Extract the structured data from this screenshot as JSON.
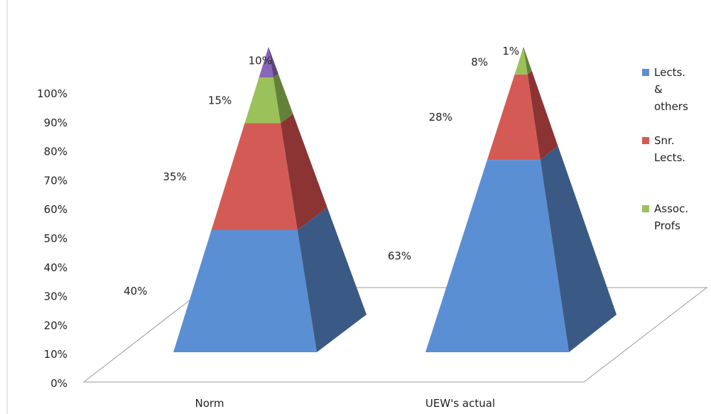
{
  "chart_data": {
    "type": "bar",
    "subtype": "stacked-pyramid-3d",
    "title": "",
    "xlabel": "",
    "ylabel": "",
    "ylim": [
      0,
      100
    ],
    "y_ticks": [
      "0%",
      "10%",
      "20%",
      "30%",
      "40%",
      "50%",
      "60%",
      "70%",
      "80%",
      "90%",
      "100%"
    ],
    "categories": [
      "Norm",
      "UEW's actual"
    ],
    "series": [
      {
        "name": "Lects. & others",
        "legend_lines": [
          "Lects.",
          "&",
          "others"
        ],
        "color": "#5b8fd4",
        "side_color": "#3a5a85",
        "values": [
          40,
          63
        ],
        "labels": [
          "40%",
          "63%"
        ]
      },
      {
        "name": "Snr. Lects.",
        "legend_lines": [
          "Snr.",
          "Lects."
        ],
        "color": "#d45b55",
        "side_color": "#8c3434",
        "values": [
          35,
          28
        ],
        "labels": [
          "35%",
          "28%"
        ]
      },
      {
        "name": "Assoc. Profs",
        "legend_lines": [
          "Assoc.",
          "Profs"
        ],
        "color": "#9bc25a",
        "side_color": "#64813a",
        "values": [
          15,
          8
        ],
        "labels": [
          "15%",
          "8%"
        ]
      },
      {
        "name": "",
        "legend_lines": [],
        "color": "#8a66b8",
        "side_color": "#5e437f",
        "values": [
          10,
          1
        ],
        "labels": [
          "10%",
          "1%"
        ]
      }
    ],
    "grid": false,
    "legend": "right"
  }
}
